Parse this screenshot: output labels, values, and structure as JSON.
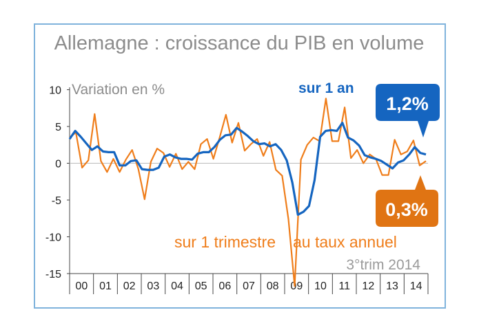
{
  "chart_data": {
    "type": "line",
    "title": "Allemagne : croissance du PIB en volume",
    "ylabel": "Variation en %",
    "xlabel": "",
    "ylim": [
      -15,
      10
    ],
    "yticks": [
      10,
      5,
      0,
      -5,
      -10,
      -15
    ],
    "x_start": 2000,
    "x_end": 2015,
    "year_labels": [
      "00",
      "01",
      "02",
      "03",
      "04",
      "05",
      "06",
      "07",
      "08",
      "09",
      "10",
      "11",
      "12",
      "13",
      "14"
    ],
    "series": [
      {
        "name": "sur 1 an",
        "color": "#1565c0",
        "values": [
          3.3,
          4.4,
          3.6,
          2.7,
          1.8,
          2.3,
          1.6,
          1.5,
          1.5,
          -0.3,
          -0.3,
          0.3,
          0.4,
          -0.8,
          -0.9,
          -0.9,
          -0.6,
          0.9,
          1.2,
          0.8,
          0.6,
          0.6,
          0.5,
          1.3,
          1.5,
          1.5,
          2.2,
          3.2,
          3.8,
          3.9,
          4.8,
          4.3,
          3.7,
          3.0,
          2.6,
          2.7,
          2.3,
          2.6,
          1.8,
          0.4,
          -2.6,
          -7.0,
          -6.6,
          -5.8,
          -2.3,
          3.6,
          4.4,
          4.5,
          4.4,
          5.5,
          3.5,
          3.1,
          2.4,
          1.1,
          0.8,
          0.6,
          0.3,
          -0.2,
          -0.7,
          0.1,
          0.4,
          1.2,
          2.2,
          1.4,
          1.2
        ],
        "last_value_label": "1,2%"
      },
      {
        "name": "sur 1 trimestre au taux annuel",
        "color": "#ef7d1a",
        "values": [
          3.5,
          4.2,
          -0.6,
          0.4,
          6.7,
          0.3,
          -1.2,
          0.6,
          -1.2,
          0.5,
          1.8,
          -0.8,
          -4.9,
          0.2,
          2.0,
          1.4,
          -0.5,
          1.3,
          -0.8,
          0.2,
          -0.8,
          2.6,
          3.3,
          0.6,
          3.5,
          6.6,
          2.8,
          5.5,
          1.7,
          2.6,
          3.3,
          1.0,
          2.9,
          -0.9,
          -1.7,
          -7.6,
          -16.7,
          0.5,
          2.5,
          3.5,
          3.0,
          8.8,
          3.0,
          3.0,
          7.6,
          0.7,
          1.8,
          0.0,
          1.2,
          0.6,
          -1.6,
          -1.6,
          3.2,
          1.2,
          1.6,
          3.1,
          -0.3,
          0.3
        ],
        "last_value_label": "0,3%"
      }
    ],
    "annotations": {
      "annual_label": "sur 1 an",
      "quarterly_label_1": "sur 1 trimestre",
      "quarterly_label_2": "au taux annuel",
      "source": "3°trim 2014",
      "annual_badge": "1,2%",
      "quarterly_badge": "0,3%"
    },
    "colors": {
      "annual": "#1565c0",
      "quarterly": "#ef7d1a",
      "frame": "#7fb3dc",
      "annual_badge": "#1565c0",
      "quarterly_badge": "#e07413"
    }
  }
}
